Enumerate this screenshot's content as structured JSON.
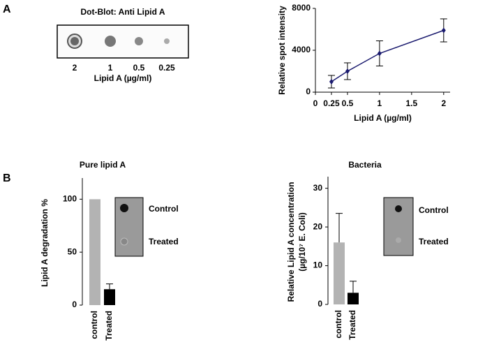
{
  "panels": [
    "A",
    "B"
  ],
  "dot_blot": {
    "title": "Dot-Blot: Anti Lipid A",
    "labels": [
      "2",
      "1",
      "0.5",
      "0.25"
    ],
    "xlabel": "Lipid A (µg/ml)"
  },
  "chart_data": [
    {
      "type": "line",
      "x": [
        0.25,
        0.5,
        1,
        2
      ],
      "values": [
        1000,
        2000,
        3700,
        5900
      ],
      "errors": [
        600,
        800,
        1200,
        1100
      ],
      "color": "#1a1a6e",
      "xlim": [
        0,
        2.1
      ],
      "xticks": [
        0,
        0.25,
        0.5,
        1,
        1.5,
        2
      ],
      "ylim": [
        0,
        8000
      ],
      "yticks": [
        0,
        4000,
        8000
      ],
      "xlabel": "Lipid A (µg/ml)",
      "ylabel": "Relative spot intensity"
    },
    {
      "type": "bar",
      "title": "Pure lipid A",
      "categories": [
        "control",
        "Treated"
      ],
      "values": [
        100,
        15
      ],
      "errors": [
        null,
        5
      ],
      "colors": [
        "#b3b3b3",
        "#000000"
      ],
      "ylim": [
        0,
        120
      ],
      "yticks": [
        0,
        50,
        100
      ],
      "ylabel": [
        "Lipid A degradation %"
      ],
      "inset_labels": [
        "Control",
        "Treated"
      ]
    },
    {
      "type": "bar",
      "title": "Bacteria",
      "categories": [
        "control",
        "Treated"
      ],
      "values": [
        16,
        3
      ],
      "errors": [
        7.5,
        3
      ],
      "colors": [
        "#b3b3b3",
        "#000000"
      ],
      "ylim": [
        0,
        33
      ],
      "yticks": [
        0,
        10,
        20,
        30
      ],
      "ylabel": [
        "Relative Lipid A concentration",
        "(µg/10⁷ E. Coli)"
      ],
      "inset_labels": [
        "Control",
        "Treated"
      ]
    }
  ]
}
